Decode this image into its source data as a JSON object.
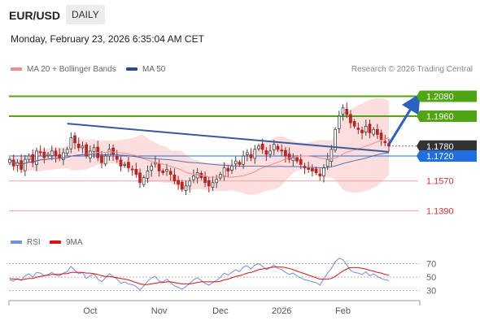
{
  "header": {
    "pair": "EUR/USD",
    "timeframe": "DAILY",
    "datetime": "Monday, February 23, 2026 6:35:04 AM CET"
  },
  "legend": {
    "bb_label": "MA 20 + Bollinger Bands",
    "ma50_label": "MA 50",
    "credit": "Research © 2026 Trading Central",
    "colors": {
      "bb": "#f28b8b",
      "ma50": "#2b4c8c"
    }
  },
  "rsi_legend": {
    "rsi_label": "RSI",
    "ma_label": "9MA",
    "colors": {
      "rsi": "#6f8fe0",
      "ma": "#e01010"
    }
  },
  "chart_data": [
    {
      "type": "candlestick",
      "x_ticks": [
        "Oct",
        "Nov",
        "Dec",
        "2026",
        "Feb"
      ],
      "ylim": [
        1.128,
        1.218
      ],
      "levels": [
        {
          "value": 1.208,
          "label": "1.2080",
          "kind": "resistance",
          "color": "#4fa514"
        },
        {
          "value": 1.196,
          "label": "1.1960",
          "kind": "resistance",
          "color": "#4fa514"
        },
        {
          "value": 1.178,
          "label": "1.1780",
          "kind": "last",
          "color": "#333333"
        },
        {
          "value": 1.172,
          "label": "1.1720",
          "kind": "pivot",
          "color": "#1f6fe0"
        },
        {
          "value": 1.157,
          "label": "1.1570",
          "kind": "support",
          "color": "#e23030"
        },
        {
          "value": 1.139,
          "label": "1.1390",
          "kind": "support",
          "color": "#e23030"
        }
      ],
      "closes": [
        1.17,
        1.166,
        1.168,
        1.164,
        1.17,
        1.172,
        1.168,
        1.175,
        1.174,
        1.171,
        1.173,
        1.175,
        1.172,
        1.171,
        1.174,
        1.176,
        1.183,
        1.18,
        1.177,
        1.178,
        1.172,
        1.175,
        1.177,
        1.171,
        1.168,
        1.172,
        1.176,
        1.173,
        1.17,
        1.166,
        1.167,
        1.165,
        1.164,
        1.161,
        1.156,
        1.159,
        1.163,
        1.166,
        1.168,
        1.163,
        1.162,
        1.164,
        1.161,
        1.157,
        1.155,
        1.152,
        1.154,
        1.157,
        1.16,
        1.162,
        1.159,
        1.156,
        1.154,
        1.156,
        1.158,
        1.161,
        1.165,
        1.163,
        1.166,
        1.169,
        1.167,
        1.172,
        1.174,
        1.171,
        1.176,
        1.178,
        1.176,
        1.173,
        1.175,
        1.179,
        1.176,
        1.175,
        1.172,
        1.17,
        1.171,
        1.169,
        1.167,
        1.165,
        1.164,
        1.163,
        1.162,
        1.16,
        1.165,
        1.17,
        1.176,
        1.188,
        1.196,
        1.201,
        1.197,
        1.192,
        1.19,
        1.188,
        1.186,
        1.19,
        1.186,
        1.188,
        1.185,
        1.182,
        1.18,
        1.178
      ],
      "trendline_from": {
        "x_index": 15,
        "value": 1.1915
      },
      "trendline_to": {
        "x_index": 99,
        "value": 1.1745
      },
      "forecast_arrow_to": 1.208
    },
    {
      "type": "line",
      "name": "RSI",
      "ylim": [
        20,
        85
      ],
      "y_ticks": [
        "70",
        "50",
        "30"
      ],
      "series": [
        {
          "name": "RSI",
          "values": [
            46,
            44,
            48,
            45,
            52,
            55,
            50,
            57,
            56,
            52,
            54,
            57,
            53,
            52,
            56,
            58,
            66,
            60,
            55,
            57,
            48,
            52,
            55,
            47,
            43,
            49,
            55,
            51,
            47,
            41,
            43,
            40,
            39,
            36,
            31,
            37,
            44,
            49,
            51,
            44,
            43,
            47,
            42,
            37,
            35,
            32,
            36,
            41,
            46,
            49,
            45,
            41,
            38,
            42,
            45,
            50,
            56,
            53,
            57,
            61,
            58,
            65,
            67,
            62,
            68,
            70,
            66,
            61,
            64,
            68,
            63,
            61,
            57,
            54,
            56,
            52,
            49,
            46,
            45,
            43,
            42,
            38,
            48,
            56,
            63,
            73,
            78,
            76,
            68,
            60,
            57,
            56,
            54,
            58,
            52,
            55,
            51,
            48,
            46,
            45
          ]
        },
        {
          "name": "9MA",
          "values": [
            48,
            47,
            47,
            46,
            47,
            48,
            48,
            50,
            51,
            52,
            53,
            54,
            54,
            54,
            55,
            55,
            57,
            57,
            57,
            57,
            56,
            56,
            55,
            54,
            52,
            51,
            51,
            50,
            49,
            48,
            47,
            46,
            44,
            42,
            40,
            39,
            39,
            40,
            41,
            42,
            42,
            43,
            43,
            42,
            41,
            40,
            40,
            40,
            41,
            42,
            43,
            43,
            43,
            43,
            43,
            44,
            46,
            47,
            49,
            51,
            52,
            54,
            56,
            57,
            59,
            61,
            62,
            63,
            64,
            65,
            65,
            65,
            64,
            63,
            61,
            59,
            57,
            55,
            53,
            51,
            49,
            47,
            47,
            47,
            48,
            51,
            55,
            59,
            62,
            64,
            64,
            64,
            63,
            62,
            60,
            59,
            57,
            56,
            54,
            53
          ]
        }
      ]
    }
  ]
}
